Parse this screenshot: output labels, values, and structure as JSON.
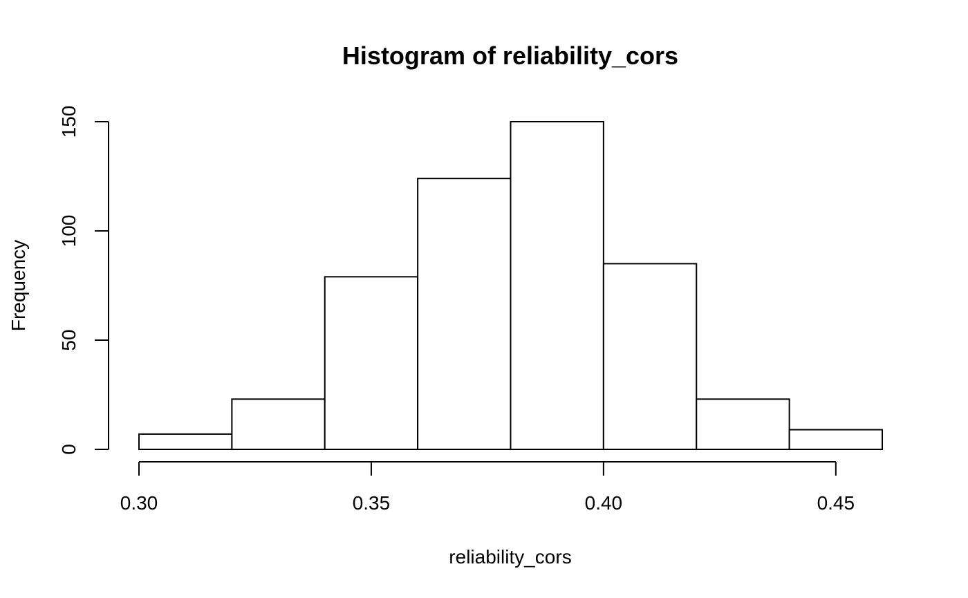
{
  "chart_data": {
    "type": "bar",
    "title": "Histogram of reliability_cors",
    "xlabel": "reliability_cors",
    "ylabel": "Frequency",
    "bins": [
      {
        "start": 0.3,
        "end": 0.32,
        "count": 7
      },
      {
        "start": 0.32,
        "end": 0.34,
        "count": 23
      },
      {
        "start": 0.34,
        "end": 0.36,
        "count": 79
      },
      {
        "start": 0.36,
        "end": 0.38,
        "count": 124
      },
      {
        "start": 0.38,
        "end": 0.4,
        "count": 150
      },
      {
        "start": 0.4,
        "end": 0.42,
        "count": 85
      },
      {
        "start": 0.42,
        "end": 0.44,
        "count": 23
      },
      {
        "start": 0.44,
        "end": 0.46,
        "count": 9
      }
    ],
    "xlim": [
      0.3,
      0.46
    ],
    "ylim": [
      0,
      150
    ],
    "xticks": [
      0.3,
      0.35,
      0.4,
      0.45
    ],
    "xtick_labels": [
      "0.30",
      "0.35",
      "0.40",
      "0.45"
    ],
    "yticks": [
      0,
      50,
      100,
      150
    ],
    "ytick_labels": [
      "0",
      "50",
      "100",
      "150"
    ],
    "grid": false,
    "bar_fill": "#ffffff",
    "bar_stroke": "#000000"
  }
}
